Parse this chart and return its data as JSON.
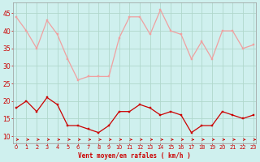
{
  "x": [
    0,
    1,
    2,
    3,
    4,
    5,
    6,
    7,
    8,
    9,
    10,
    11,
    12,
    13,
    14,
    15,
    16,
    17,
    18,
    19,
    20,
    21,
    22,
    23
  ],
  "wind_avg": [
    18,
    20,
    17,
    21,
    19,
    13,
    13,
    12,
    11,
    13,
    17,
    17,
    19,
    18,
    16,
    17,
    16,
    11,
    13,
    13,
    17,
    16,
    15,
    16
  ],
  "wind_gust": [
    44,
    40,
    35,
    43,
    39,
    32,
    26,
    27,
    27,
    27,
    38,
    44,
    44,
    39,
    46,
    40,
    39,
    32,
    37,
    32,
    40,
    40,
    35,
    36
  ],
  "bg_color": "#cff0ee",
  "grid_color": "#b0d8cc",
  "avg_color": "#cc0000",
  "gust_color": "#f0a0a0",
  "arrow_color": "#cc0000",
  "xlabel": "Vent moyen/en rafales ( km/h )",
  "xlabel_color": "#cc0000",
  "ytick_labels": [
    "10",
    "15",
    "20",
    "25",
    "30",
    "35",
    "40",
    "45"
  ],
  "ytick_vals": [
    10,
    15,
    20,
    25,
    30,
    35,
    40,
    45
  ],
  "xtick_vals": [
    0,
    1,
    2,
    3,
    4,
    5,
    6,
    7,
    8,
    9,
    10,
    11,
    12,
    13,
    14,
    15,
    16,
    17,
    18,
    19,
    20,
    21,
    22,
    23
  ],
  "ylim": [
    8,
    48
  ],
  "xlim": [
    -0.3,
    23.3
  ]
}
